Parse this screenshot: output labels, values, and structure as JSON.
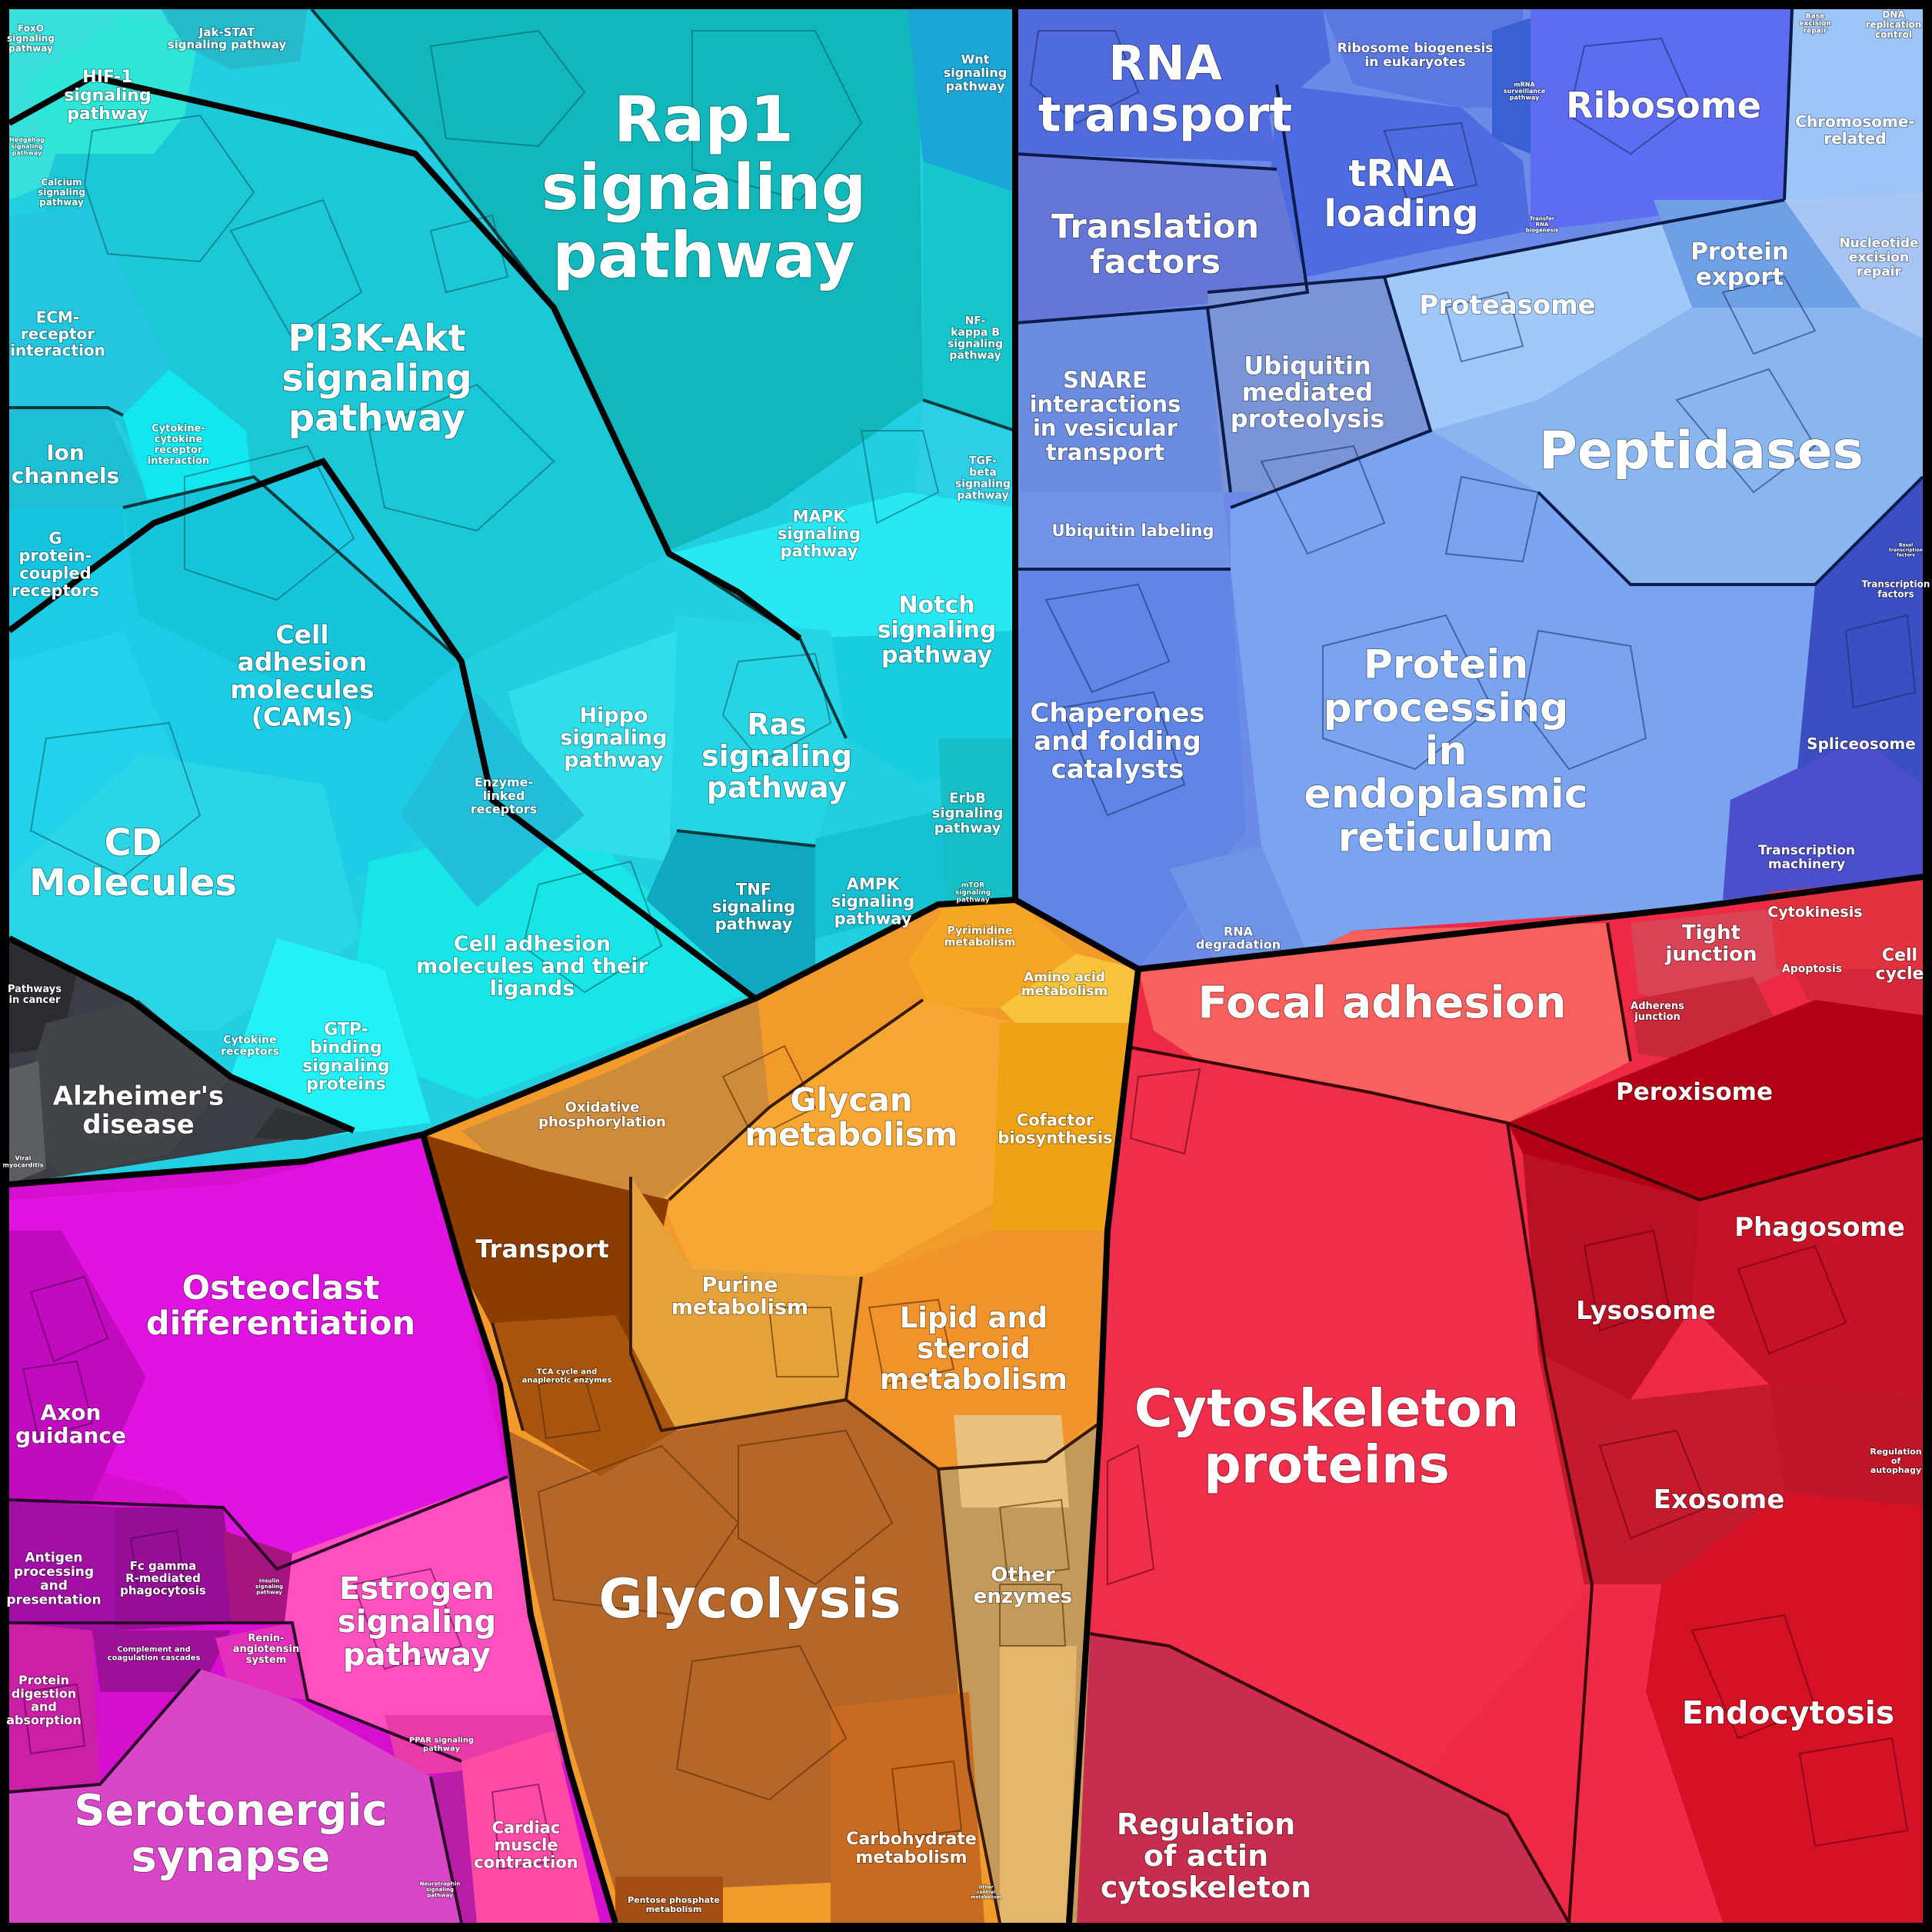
{
  "regions": [
    {
      "key": "cyan",
      "name": "signaling-region",
      "color": "#1fd3e3",
      "labels": [
        {
          "id": "rap1",
          "text": "Rap1\nsignaling\npathway"
        },
        {
          "id": "pi3k",
          "text": "PI3K-Akt\nsignaling\npathway"
        },
        {
          "id": "hif1",
          "text": "HIF-1\nsignaling\npathway"
        },
        {
          "id": "jakstat",
          "text": "Jak-STAT\nsignaling pathway"
        },
        {
          "id": "foxo",
          "text": "FoxO\nsignaling\npathway"
        },
        {
          "id": "hedgehog",
          "text": "Hedgehog\nsignaling\npathway"
        },
        {
          "id": "calcium",
          "text": "Calcium\nsignaling\npathway"
        },
        {
          "id": "wnt",
          "text": "Wnt\nsignaling\npathway"
        },
        {
          "id": "nfkb",
          "text": "NF-\nkappa B\nsignaling\npathway"
        },
        {
          "id": "tgfb",
          "text": "TGF-\nbeta\nsignaling\npathway"
        },
        {
          "id": "ecm",
          "text": "ECM-\nreceptor\ninteraction"
        },
        {
          "id": "ion",
          "text": "Ion\nchannels"
        },
        {
          "id": "cytokine_int",
          "text": "Cytokine-\ncytokine\nreceptor\ninteraction"
        },
        {
          "id": "gpcr",
          "text": "G\nprotein-\ncoupled\nreceptors"
        },
        {
          "id": "mapk",
          "text": "MAPK\nsignaling\npathway"
        },
        {
          "id": "notch",
          "text": "Notch\nsignaling\npathway"
        },
        {
          "id": "cams",
          "text": "Cell\nadhesion\nmolecules\n(CAMs)"
        },
        {
          "id": "hippo",
          "text": "Hippo\nsignaling\npathway"
        },
        {
          "id": "ras",
          "text": "Ras\nsignaling\npathway"
        },
        {
          "id": "enzyme",
          "text": "Enzyme-\nlinked\nreceptors"
        },
        {
          "id": "erbb",
          "text": "ErbB\nsignaling\npathway"
        },
        {
          "id": "cd",
          "text": "CD\nMolecules"
        },
        {
          "id": "tnf",
          "text": "TNF\nsignaling\npathway"
        },
        {
          "id": "ampk",
          "text": "AMPK\nsignaling\npathway"
        },
        {
          "id": "mtor",
          "text": "mTOR\nsignaling\npathway"
        },
        {
          "id": "celladh2",
          "text": "Cell adhesion\nmolecules and their\nligands"
        },
        {
          "id": "cytokine_rec",
          "text": "Cytokine\nreceptors"
        },
        {
          "id": "gtp",
          "text": "GTP-\nbinding\nsignaling\nproteins"
        }
      ]
    },
    {
      "key": "dark",
      "name": "disease-region",
      "color": "#3b3f45",
      "labels": [
        {
          "id": "pathcancer",
          "text": "Pathways\nin cancer"
        },
        {
          "id": "alz",
          "text": "Alzheimer's\ndisease"
        },
        {
          "id": "viral",
          "text": "Viral\nmyocarditis"
        }
      ]
    },
    {
      "key": "blue",
      "name": "genetic-information-region",
      "color": "#5d7fe6",
      "labels": [
        {
          "id": "rnatransport",
          "text": "RNA\ntransport"
        },
        {
          "id": "ribobio",
          "text": "Ribosome biogenesis\nin eukaryotes"
        },
        {
          "id": "mrna",
          "text": "mRNA\nsurveillance\npathway"
        },
        {
          "id": "ribosome",
          "text": "Ribosome"
        },
        {
          "id": "ber",
          "text": "Base\nexcision\nrepair"
        },
        {
          "id": "dnarep",
          "text": "DNA\nreplication\ncontrol"
        },
        {
          "id": "chromo",
          "text": "Chromosome-\nrelated"
        },
        {
          "id": "trna",
          "text": "tRNA\nloading"
        },
        {
          "id": "translation",
          "text": "Translation\nfactors"
        },
        {
          "id": "transfer",
          "text": "Transfer\nRNA\nbiogenesis"
        },
        {
          "id": "protexport",
          "text": "Protein\nexport"
        },
        {
          "id": "ner",
          "text": "Nucleotide\nexcision\nrepair"
        },
        {
          "id": "proteasome",
          "text": "Proteasome"
        },
        {
          "id": "snare",
          "text": "SNARE\ninteractions\nin vesicular\ntransport"
        },
        {
          "id": "ubiq",
          "text": "Ubiquitin\nmediated\nproteolysis"
        },
        {
          "id": "peptidases",
          "text": "Peptidases"
        },
        {
          "id": "ublabel",
          "text": "Ubiquitin labeling"
        },
        {
          "id": "chaperones",
          "text": "Chaperones\nand folding\ncatalysts"
        },
        {
          "id": "perl",
          "text": "Protein\nprocessing\nin\nendoplasmic\nreticulum"
        },
        {
          "id": "spliceosome",
          "text": "Spliceosome"
        },
        {
          "id": "transcmach",
          "text": "Transcription\nmachinery"
        },
        {
          "id": "rnadeg",
          "text": "RNA\ndegradation"
        },
        {
          "id": "basaltf",
          "text": "Basal\ntranscription\nfactors"
        },
        {
          "id": "transfac",
          "text": "Transcription\nfactors"
        }
      ]
    },
    {
      "key": "red",
      "name": "cellular-processes-region",
      "color": "#ee2a45",
      "labels": [
        {
          "id": "tight",
          "text": "Tight\njunction"
        },
        {
          "id": "cytokinesis",
          "text": "Cytokinesis"
        },
        {
          "id": "cellcycle",
          "text": "Cell\ncycle"
        },
        {
          "id": "apoptosis",
          "text": "Apoptosis"
        },
        {
          "id": "focal",
          "text": "Focal adhesion"
        },
        {
          "id": "adherens",
          "text": "Adherens\njunction"
        },
        {
          "id": "peroxisome",
          "text": "Peroxisome"
        },
        {
          "id": "phagosome",
          "text": "Phagosome"
        },
        {
          "id": "lysosome",
          "text": "Lysosome"
        },
        {
          "id": "cytoskel",
          "text": "Cytoskeleton\nproteins"
        },
        {
          "id": "exosome",
          "text": "Exosome"
        },
        {
          "id": "autophagy",
          "text": "Regulation\nof\nautophagy"
        },
        {
          "id": "endocytosis",
          "text": "Endocytosis"
        },
        {
          "id": "actin",
          "text": "Regulation\nof actin\ncytoskeleton"
        }
      ]
    },
    {
      "key": "orange",
      "name": "metabolism-region",
      "color": "#f2a231",
      "labels": [
        {
          "id": "pyrimidine",
          "text": "Pyrimidine\nmetabolism"
        },
        {
          "id": "aminoacid",
          "text": "Amino acid\nmetabolism"
        },
        {
          "id": "oxphos",
          "text": "Oxidative\nphosphorylation"
        },
        {
          "id": "glycan",
          "text": "Glycan\nmetabolism"
        },
        {
          "id": "cofactor",
          "text": "Cofactor\nbiosynthesis"
        },
        {
          "id": "transport",
          "text": "Transport"
        },
        {
          "id": "purine",
          "text": "Purine\nmetabolism"
        },
        {
          "id": "lipid",
          "text": "Lipid and\nsteroid\nmetabolism"
        },
        {
          "id": "tca",
          "text": "TCA cycle and\nanaplerotic enzymes"
        },
        {
          "id": "glycolysis",
          "text": "Glycolysis"
        },
        {
          "id": "other",
          "text": "Other\nenzymes"
        },
        {
          "id": "carbo",
          "text": "Carbohydrate\nmetabolism"
        },
        {
          "id": "pentose",
          "text": "Pentose phosphate\nmetabolism"
        },
        {
          "id": "othercentral",
          "text": "Other\ncentral\nmetabolism"
        }
      ]
    },
    {
      "key": "magenta",
      "name": "organismal-systems-region",
      "color": "#dd18d6",
      "labels": [
        {
          "id": "osteo",
          "text": "Osteoclast\ndifferentiation"
        },
        {
          "id": "axon",
          "text": "Axon\nguidance"
        },
        {
          "id": "antigen",
          "text": "Antigen\nprocessing\nand\npresentation"
        },
        {
          "id": "fcgamma",
          "text": "Fc gamma\nR-mediated\nphagocytosis"
        },
        {
          "id": "insulin",
          "text": "Insulin\nsignaling\npathway"
        },
        {
          "id": "estrogen",
          "text": "Estrogen\nsignaling\npathway"
        },
        {
          "id": "complement",
          "text": "Complement and\ncoagulation cascades"
        },
        {
          "id": "renin",
          "text": "Renin-\nangiotensin\nsystem"
        },
        {
          "id": "protdig",
          "text": "Protein\ndigestion\nand\nabsorption"
        },
        {
          "id": "ppar",
          "text": "PPAR signaling\npathway"
        },
        {
          "id": "serotonergic",
          "text": "Serotonergic\nsynapse"
        },
        {
          "id": "neuro",
          "text": "Neurotrophin\nsignaling\npathway"
        },
        {
          "id": "cardiac",
          "text": "Cardiac\nmuscle\ncontraction"
        }
      ]
    }
  ]
}
